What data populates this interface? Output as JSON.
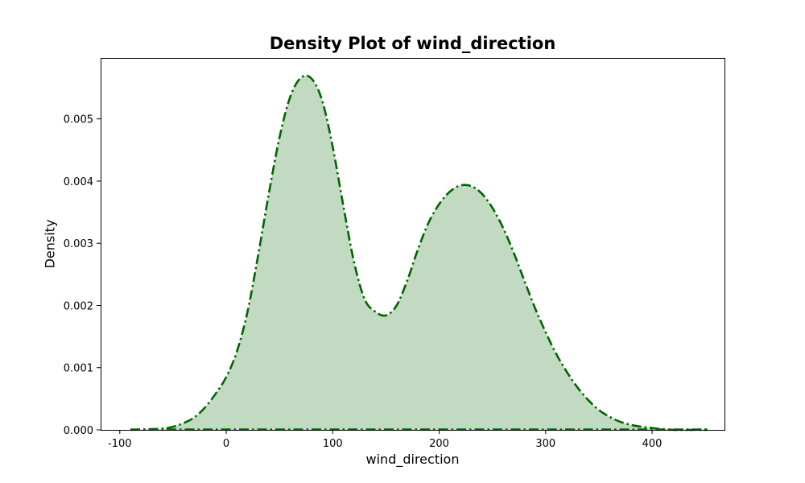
{
  "chart_data": {
    "type": "area",
    "title": "Density Plot of wind_direction",
    "xlabel": "wind_direction",
    "ylabel": "Density",
    "xlim": [
      -118,
      468
    ],
    "ylim": [
      0,
      0.00598
    ],
    "xticks": [
      -100,
      0,
      100,
      200,
      300,
      400
    ],
    "yticks": [
      0.0,
      0.001,
      0.002,
      0.003,
      0.004,
      0.005
    ],
    "ytick_labels": [
      "0.000",
      "0.001",
      "0.002",
      "0.003",
      "0.004",
      "0.005"
    ],
    "grid": false,
    "line_color": "#006400",
    "fill_color": "#c1dac1",
    "line_style": "dash-dot",
    "x": [
      -90,
      -75,
      -60,
      -50,
      -40,
      -30,
      -20,
      -10,
      0,
      10,
      20,
      30,
      40,
      50,
      60,
      70,
      80,
      90,
      100,
      110,
      120,
      130,
      140,
      150,
      160,
      170,
      180,
      190,
      200,
      210,
      220,
      230,
      240,
      250,
      260,
      270,
      280,
      290,
      300,
      310,
      320,
      330,
      340,
      350,
      360,
      370,
      380,
      390,
      400,
      410,
      420,
      435,
      452
    ],
    "y": [
      0.0,
      1e-05,
      2e-05,
      5e-05,
      0.00011,
      0.0002,
      0.00036,
      0.00058,
      0.00085,
      0.00126,
      0.0019,
      0.00281,
      0.0038,
      0.0047,
      0.00535,
      0.00566,
      0.00565,
      0.0053,
      0.00455,
      0.0036,
      0.0027,
      0.0021,
      0.0019,
      0.00184,
      0.002,
      0.0024,
      0.0029,
      0.00333,
      0.00363,
      0.00383,
      0.00393,
      0.00392,
      0.0038,
      0.00357,
      0.00325,
      0.00285,
      0.0024,
      0.00196,
      0.00157,
      0.00122,
      0.00093,
      0.00068,
      0.00048,
      0.00032,
      0.00021,
      0.00013,
      8e-05,
      5e-05,
      3e-05,
      1e-05,
      0.0,
      0.0,
      0.0
    ]
  }
}
